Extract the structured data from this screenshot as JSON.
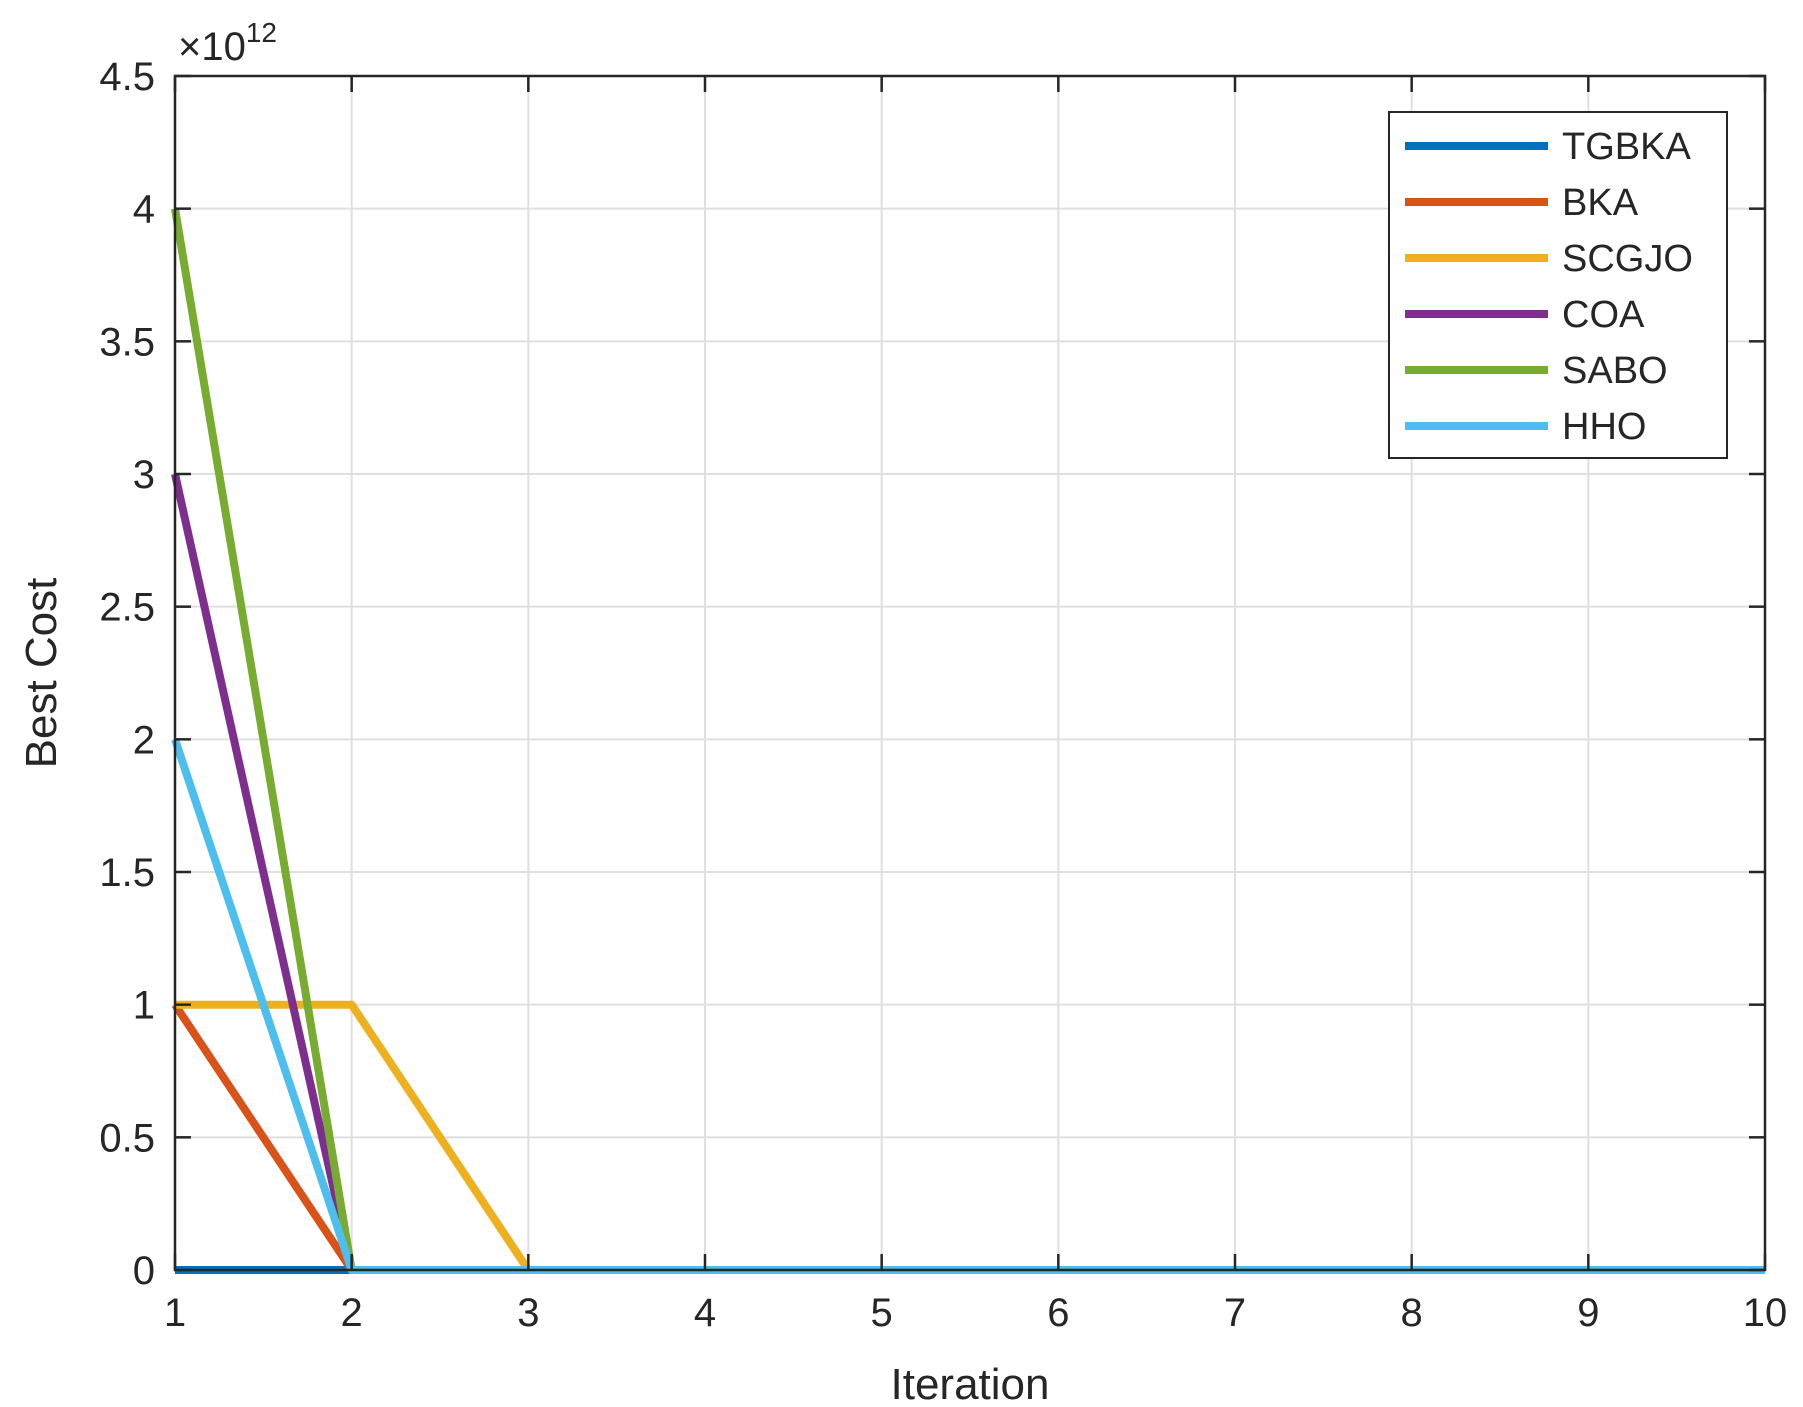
{
  "chart_data": {
    "type": "line",
    "xlabel": "Iteration",
    "ylabel": "Best Cost",
    "exponent_label": "×10",
    "exponent_power": "12",
    "xlim": [
      1,
      10
    ],
    "ylim": [
      0,
      4.5
    ],
    "xticks": [
      "1",
      "2",
      "3",
      "4",
      "5",
      "6",
      "7",
      "8",
      "9",
      "10"
    ],
    "yticks": [
      "0",
      "0.5",
      "1",
      "1.5",
      "2",
      "2.5",
      "3",
      "3.5",
      "4",
      "4.5"
    ],
    "grid": true,
    "legend_position": "top-right",
    "x": [
      1,
      2,
      3,
      4,
      5,
      6,
      7,
      8,
      9,
      10
    ],
    "series": [
      {
        "name": "TGBKA",
        "color": "#0072BD",
        "values": [
          0,
          0,
          0,
          0,
          0,
          0,
          0,
          0,
          0,
          0
        ]
      },
      {
        "name": "BKA",
        "color": "#D95319",
        "values": [
          1,
          0,
          0,
          0,
          0,
          0,
          0,
          0,
          0,
          0
        ]
      },
      {
        "name": "SCGJO",
        "color": "#EDB120",
        "values": [
          1,
          1,
          0,
          0,
          0,
          0,
          0,
          0,
          0,
          0
        ]
      },
      {
        "name": "COA",
        "color": "#7E2F8E",
        "values": [
          3,
          0,
          0,
          0,
          0,
          0,
          0,
          0,
          0,
          0
        ]
      },
      {
        "name": "SABO",
        "color": "#77AC30",
        "values": [
          4,
          0,
          0,
          0,
          0,
          0,
          0,
          0,
          0,
          0
        ]
      },
      {
        "name": "HHO",
        "color": "#4DBEEE",
        "values": [
          2,
          0,
          0,
          0,
          0,
          0,
          0,
          0,
          0,
          0
        ]
      }
    ]
  }
}
